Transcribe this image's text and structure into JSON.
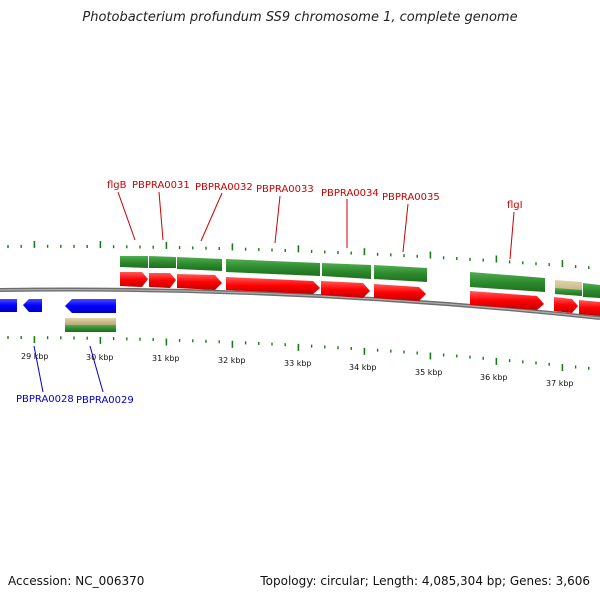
{
  "title": "Photobacterium profundum SS9 chromosome 1, complete genome",
  "footer": {
    "accession": "Accession: NC_006370",
    "topology": "Topology: circular; Length: 4,085,304 bp; Genes: 3,606"
  },
  "scale": {
    "unit": "kbp",
    "tick_labels": [
      "29 kbp",
      "30 kbp",
      "31 kbp",
      "32 kbp",
      "33 kbp",
      "34 kbp",
      "35 kbp",
      "36 kbp",
      "37 kbp"
    ]
  },
  "colors": {
    "forward_label": "#cc0000",
    "reverse_label": "#0000cc",
    "forward_gene": "#ff0000",
    "reverse_gene": "#0000ff",
    "cds_green": "#2e8b2e",
    "tick_green": "#1a7a1a",
    "backbone": "#7a7a7a"
  },
  "gene_labels_forward": [
    "flgB",
    "PBPRA0031",
    "PBPRA0032",
    "PBPRA0033",
    "PBPRA0034",
    "PBPRA0035",
    "flgI"
  ],
  "gene_labels_reverse": [
    "PBPRA0028",
    "PBPRA0029"
  ]
}
